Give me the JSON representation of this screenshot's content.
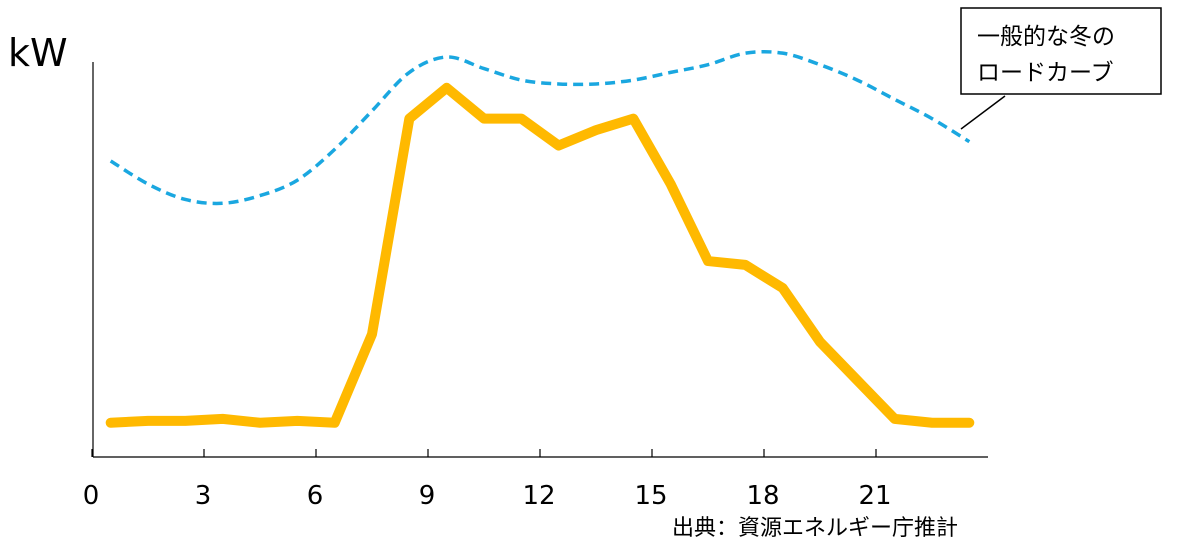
{
  "chart_data": {
    "type": "line",
    "ylabel": "kW",
    "xlabel": "",
    "x_ticks": [
      0,
      3,
      6,
      9,
      12,
      15,
      18,
      21
    ],
    "x_range": [
      0,
      24
    ],
    "y_range": [
      0,
      100
    ],
    "grid": false,
    "series": [
      {
        "name": "一般的な冬のロードカーブ",
        "style": "dashed",
        "color": "#1aa7e0",
        "x": [
          0.5,
          1.5,
          2.5,
          3.5,
          4.5,
          5.5,
          6.5,
          7.5,
          8.5,
          9.5,
          10.5,
          11.5,
          12.5,
          13.5,
          14.5,
          15.5,
          16.5,
          17.5,
          18.5,
          19.5,
          20.5,
          21.5,
          22.5,
          23.5
        ],
        "values": [
          73,
          67,
          63,
          62,
          64,
          68,
          76,
          86,
          96,
          100,
          97,
          94,
          93,
          93,
          94,
          96,
          98,
          101,
          101,
          98,
          94,
          89,
          84,
          78
        ]
      },
      {
        "name": "",
        "style": "solid",
        "color": "#ffb900",
        "x": [
          0.5,
          1.5,
          2.5,
          3.5,
          4.5,
          5.5,
          6.5,
          7.5,
          8.5,
          9.5,
          10.5,
          11.5,
          12.5,
          13.5,
          14.5,
          15.5,
          16.5,
          17.5,
          18.5,
          19.5,
          20.5,
          21.5,
          22.5,
          23.5
        ],
        "values": [
          5,
          5.5,
          5.5,
          6,
          5,
          5.5,
          5,
          28,
          84,
          92,
          84,
          84,
          77,
          81,
          84,
          67,
          47,
          46,
          40,
          26,
          16,
          6,
          5,
          5
        ]
      }
    ],
    "annotation": {
      "lines": [
        "一般的な冬の",
        "ロードカーブ"
      ]
    },
    "source": "出典：資源エネルギー庁推計"
  }
}
